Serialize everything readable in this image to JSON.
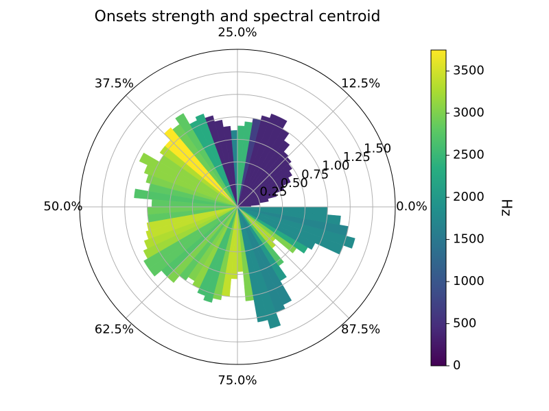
{
  "chart_data": {
    "type": "polar-bar",
    "title": "Onsets strength and spectral centroid",
    "angular_tick_labels": [
      "0.0%",
      "12.5%",
      "25.0%",
      "37.5%",
      "50.0%",
      "62.5%",
      "75.0%",
      "87.5%"
    ],
    "radial_tick_values": [
      0.25,
      0.5,
      0.75,
      1.0,
      1.25,
      1.5
    ],
    "radial_tick_labels": [
      "0.25",
      "0.50",
      "0.75",
      "1.00",
      "1.25",
      "1.50"
    ],
    "rlim": [
      0,
      1.75
    ],
    "grid": true,
    "bins": 72,
    "strength": [
      0.15,
      0.25,
      0.35,
      0.45,
      0.55,
      0.65,
      0.7,
      0.74,
      0.78,
      0.8,
      0.9,
      1.0,
      1.1,
      1.1,
      1.05,
      1.0,
      0.95,
      0.9,
      0.85,
      0.9,
      0.98,
      1.05,
      1.1,
      1.06,
      1.2,
      1.12,
      1.15,
      1.05,
      1.05,
      1.0,
      1.2,
      1.1,
      1.05,
      1.0,
      1.15,
      0.95,
      1.0,
      1.0,
      1.02,
      1.05,
      1.1,
      1.15,
      1.2,
      1.2,
      1.1,
      1.1,
      1.0,
      0.95,
      1.0,
      1.05,
      1.1,
      1.05,
      1.0,
      0.8,
      0.72,
      1.05,
      1.3,
      1.4,
      1.25,
      1.2,
      0.95,
      0.8,
      0.6,
      0.55,
      0.8,
      0.9,
      0.95,
      1.25,
      1.35,
      1.25,
      1.15,
      1.0
    ],
    "centroid_hz": [
      400,
      400,
      400,
      400,
      400,
      400,
      400,
      400,
      400,
      400,
      400,
      400,
      400,
      400,
      400,
      700,
      2500,
      2500,
      1700,
      400,
      400,
      400,
      2300,
      2300,
      2800,
      2900,
      3750,
      3750,
      3300,
      3100,
      3100,
      3100,
      3000,
      2800,
      2700,
      2800,
      2900,
      2800,
      3400,
      3400,
      3300,
      3200,
      2800,
      2800,
      2700,
      3000,
      2800,
      3000,
      3100,
      2600,
      2600,
      3000,
      3400,
      3400,
      3300,
      3000,
      1800,
      1800,
      1700,
      1700,
      2000,
      2700,
      3300,
      3300,
      3000,
      2300,
      1800,
      1800,
      1800,
      1700,
      1800,
      1800
    ],
    "colorbar": {
      "label": "Hz",
      "min": 0,
      "max": 3750,
      "ticks": [
        0,
        500,
        1000,
        1500,
        2000,
        2500,
        3000,
        3500
      ],
      "tick_labels": [
        "0",
        "500",
        "1000",
        "1500",
        "2000",
        "2500",
        "3000",
        "3500"
      ],
      "colormap": "viridis"
    }
  }
}
